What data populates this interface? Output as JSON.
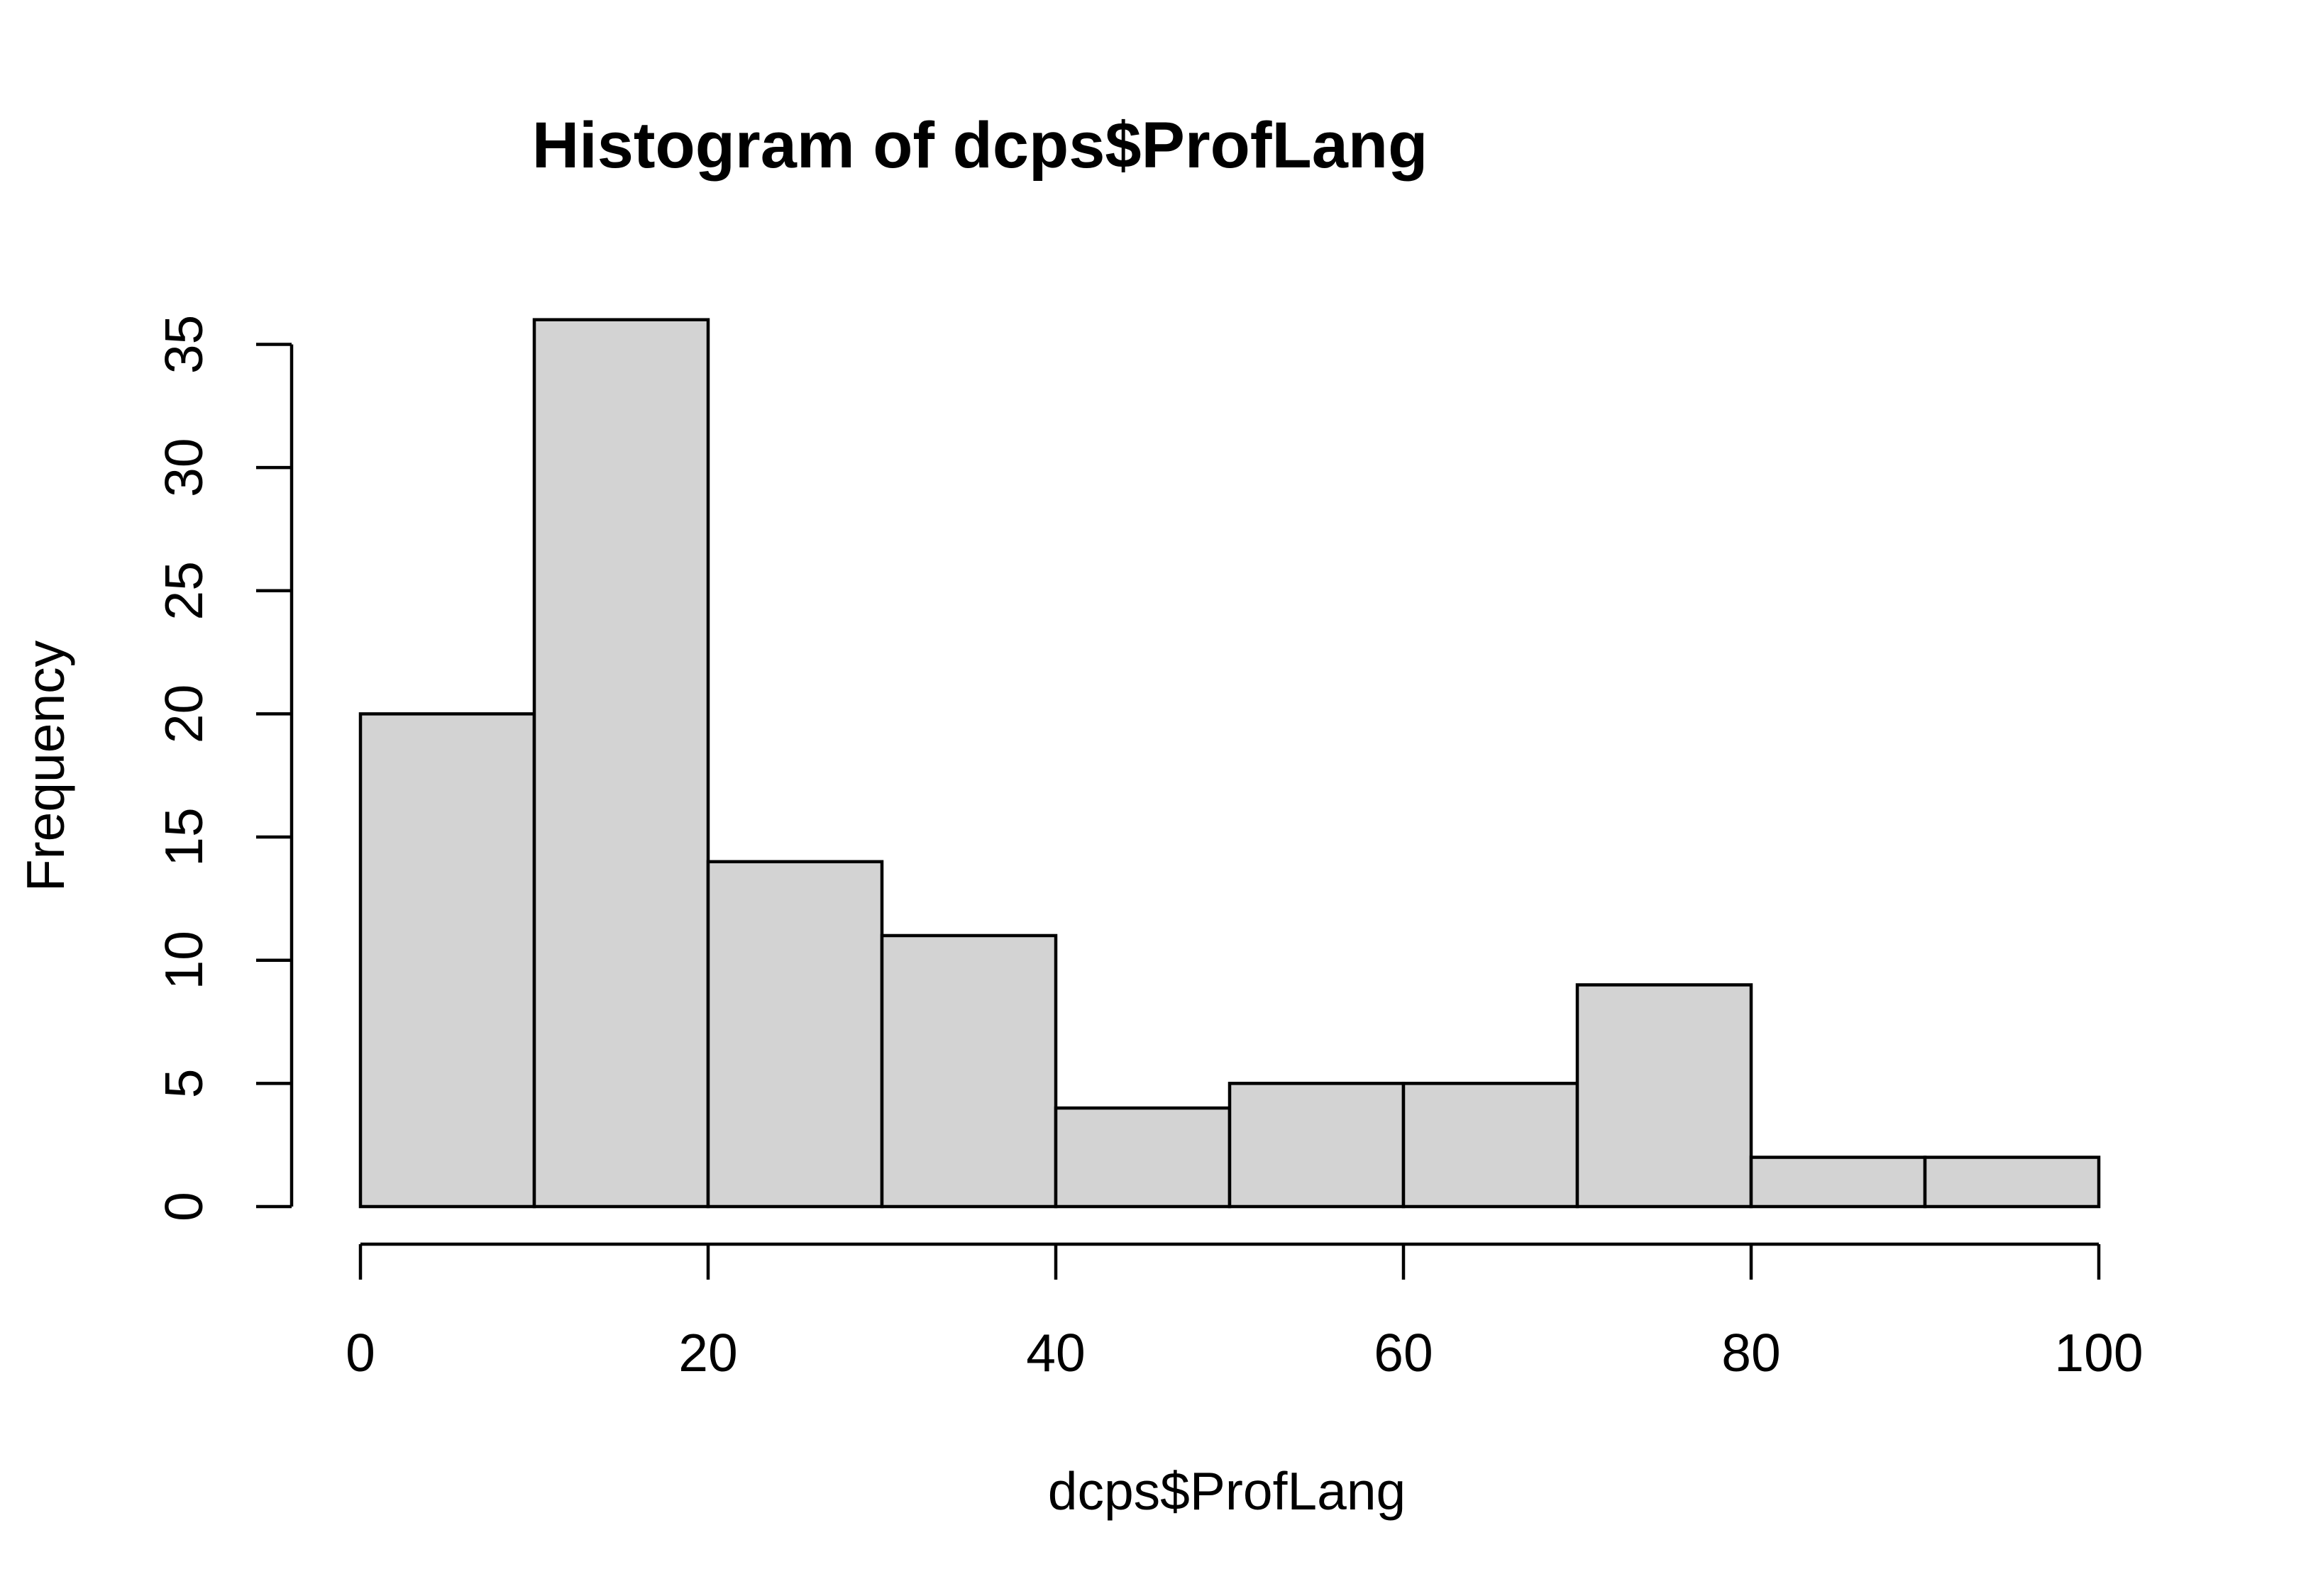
{
  "chart_data": {
    "type": "bar",
    "title": "Histogram of dcps$ProfLang",
    "xlabel": "dcps$ProfLang",
    "ylabel": "Frequency",
    "bin_edges": [
      0,
      10,
      20,
      30,
      40,
      50,
      60,
      70,
      80,
      90,
      100
    ],
    "values": [
      20,
      36,
      14,
      11,
      4,
      5,
      5,
      9,
      2,
      2
    ],
    "xlim": [
      0,
      100
    ],
    "ylim": [
      0,
      36
    ],
    "x_ticks": [
      "0",
      "20",
      "40",
      "60",
      "80",
      "100"
    ],
    "y_ticks": [
      "0",
      "5",
      "10",
      "15",
      "20",
      "25",
      "30",
      "35"
    ],
    "grid": false,
    "legend": "none",
    "bar_color": "#d3d3d3",
    "edge_color": "#000000"
  }
}
